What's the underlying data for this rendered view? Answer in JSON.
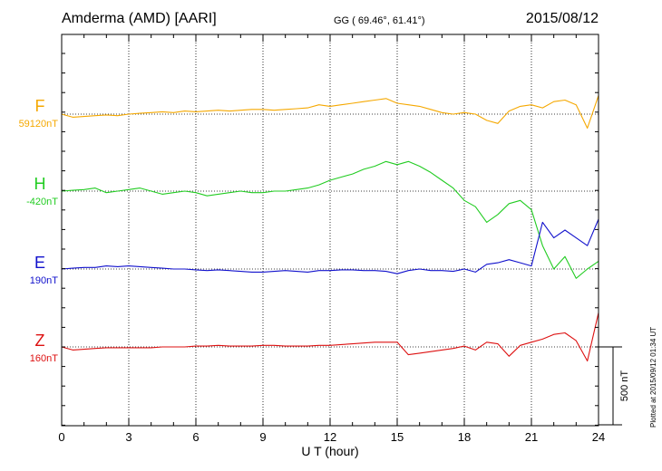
{
  "header": {
    "station": "Amderma (AMD)  [AARI]",
    "coords": "GG ( 69.46°,  61.41°)",
    "date": "2015/08/12"
  },
  "footer": {
    "plotted": "Plotted at 2015/09/12 01:34 UT"
  },
  "chart_data": {
    "type": "line",
    "title": "Amderma (AMD)  [AARI]",
    "xlabel": "U T (hour)",
    "xlim": [
      0,
      24
    ],
    "xticks": [
      0,
      3,
      6,
      9,
      12,
      15,
      18,
      21,
      24
    ],
    "grid": "dotted vertical every 3 hours, dotted baseline per series",
    "scale_bar": {
      "label": "500 nT",
      "value_nT": 500
    },
    "series": [
      {
        "name": "F",
        "baseline_label": "59120nT",
        "baseline_nT": 59120,
        "color": "#f5a800",
        "x": [
          0,
          0.5,
          1,
          1.5,
          2,
          2.5,
          3,
          3.5,
          4,
          4.5,
          5,
          5.5,
          6,
          6.5,
          7,
          7.5,
          8,
          8.5,
          9,
          9.5,
          10,
          10.5,
          11,
          11.5,
          12,
          12.5,
          13,
          13.5,
          14,
          14.5,
          15,
          15.5,
          16,
          16.5,
          17,
          17.5,
          18,
          18.5,
          19,
          19.5,
          20,
          20.5,
          21,
          21.5,
          22,
          22.5,
          23,
          23.5,
          24
        ],
        "values": [
          0,
          -20,
          -15,
          -10,
          -5,
          -10,
          0,
          5,
          10,
          15,
          10,
          20,
          15,
          20,
          25,
          20,
          25,
          30,
          30,
          25,
          30,
          35,
          40,
          60,
          50,
          60,
          70,
          80,
          90,
          100,
          70,
          60,
          50,
          30,
          10,
          0,
          10,
          0,
          -40,
          -60,
          20,
          50,
          60,
          40,
          80,
          90,
          60,
          -90,
          120
        ]
      },
      {
        "name": "H",
        "baseline_label": "-420nT",
        "baseline_nT": -420,
        "color": "#22cc22",
        "x": [
          0,
          0.5,
          1,
          1.5,
          2,
          2.5,
          3,
          3.5,
          4,
          4.5,
          5,
          5.5,
          6,
          6.5,
          7,
          7.5,
          8,
          8.5,
          9,
          9.5,
          10,
          10.5,
          11,
          11.5,
          12,
          12.5,
          13,
          13.5,
          14,
          14.5,
          15,
          15.5,
          16,
          16.5,
          17,
          17.5,
          18,
          18.5,
          19,
          19.5,
          20,
          20.5,
          21,
          21.5,
          22,
          22.5,
          23,
          23.5,
          24
        ],
        "values": [
          0,
          5,
          10,
          20,
          -10,
          0,
          10,
          20,
          0,
          -20,
          -10,
          0,
          -10,
          -30,
          -20,
          -10,
          0,
          -10,
          -10,
          0,
          0,
          10,
          20,
          40,
          70,
          90,
          110,
          140,
          160,
          190,
          170,
          190,
          160,
          120,
          70,
          20,
          -60,
          -100,
          -200,
          -150,
          -80,
          -60,
          -120,
          -350,
          -500,
          -420,
          -560,
          -500,
          -450
        ]
      },
      {
        "name": "E",
        "baseline_label": "190nT",
        "baseline_nT": 190,
        "color": "#1010cc",
        "x": [
          0,
          0.5,
          1,
          1.5,
          2,
          2.5,
          3,
          3.5,
          4,
          4.5,
          5,
          5.5,
          6,
          6.5,
          7,
          7.5,
          8,
          8.5,
          9,
          9.5,
          10,
          10.5,
          11,
          11.5,
          12,
          12.5,
          13,
          13.5,
          14,
          14.5,
          15,
          15.5,
          16,
          16.5,
          17,
          17.5,
          18,
          18.5,
          19,
          19.5,
          20,
          20.5,
          21,
          21.5,
          22,
          22.5,
          23,
          23.5,
          24
        ],
        "values": [
          0,
          5,
          10,
          10,
          20,
          15,
          20,
          15,
          10,
          5,
          0,
          0,
          -5,
          -10,
          -5,
          -10,
          -15,
          -20,
          -20,
          -15,
          -10,
          -15,
          -20,
          -10,
          -10,
          -5,
          -5,
          -10,
          -10,
          -15,
          -30,
          -10,
          0,
          -10,
          -10,
          -15,
          0,
          -20,
          30,
          40,
          60,
          40,
          20,
          300,
          200,
          250,
          200,
          150,
          320
        ]
      },
      {
        "name": "Z",
        "baseline_label": "160nT",
        "baseline_nT": 160,
        "color": "#dd1111",
        "x": [
          0,
          0.5,
          1,
          1.5,
          2,
          2.5,
          3,
          3.5,
          4,
          4.5,
          5,
          5.5,
          6,
          6.5,
          7,
          7.5,
          8,
          8.5,
          9,
          9.5,
          10,
          10.5,
          11,
          11.5,
          12,
          12.5,
          13,
          13.5,
          14,
          14.5,
          15,
          15.5,
          16,
          16.5,
          17,
          17.5,
          18,
          18.5,
          19,
          19.5,
          20,
          20.5,
          21,
          21.5,
          22,
          22.5,
          23,
          23.5,
          24
        ],
        "values": [
          0,
          -20,
          -15,
          -10,
          -5,
          -5,
          -5,
          -5,
          -5,
          0,
          0,
          0,
          5,
          5,
          10,
          5,
          5,
          5,
          10,
          10,
          5,
          5,
          5,
          10,
          10,
          15,
          20,
          25,
          30,
          30,
          30,
          -50,
          -40,
          -30,
          -20,
          -10,
          5,
          -20,
          30,
          20,
          -60,
          10,
          30,
          50,
          80,
          90,
          40,
          -90,
          220
        ]
      }
    ]
  }
}
